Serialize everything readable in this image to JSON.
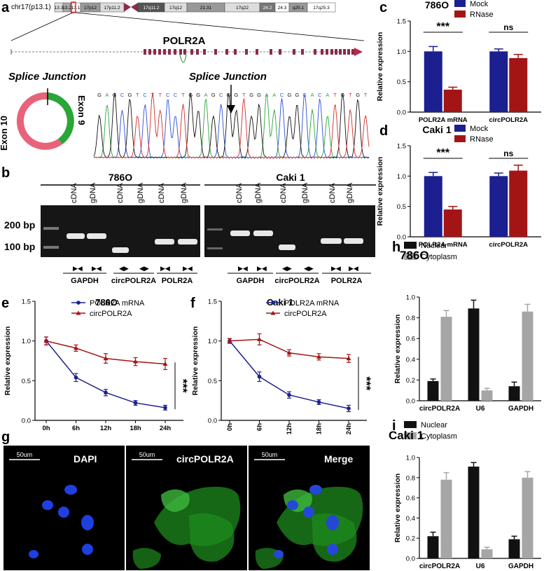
{
  "panel_labels": {
    "a": "a",
    "b": "b",
    "c": "c",
    "d": "d",
    "e": "e",
    "f": "f",
    "g": "g",
    "h": "h",
    "i": "i"
  },
  "panel_a": {
    "chrom_label": "chr17(p13.1)",
    "bands": [
      "13.3",
      "13.2",
      "13.1",
      "17p12",
      "17p11.2",
      "17q11.2",
      "17q12",
      "21.31",
      "17q22",
      "24.2",
      "24.3",
      "q25.1",
      "17q25.3"
    ],
    "gene": "POLR2A",
    "splice_left": "Splice Junction",
    "splice_right": "Splice Junction",
    "exon10": "Exon 10",
    "exon9": "Exon 9",
    "sequence": [
      "G",
      "A",
      "G",
      "C",
      "G",
      "T",
      "C",
      "T",
      "T",
      "C",
      "C",
      "T",
      "G",
      "G",
      "A",
      "G",
      "C",
      "G",
      "G",
      "T",
      "G",
      "G",
      "A",
      "A",
      "C",
      "G",
      "G",
      "C",
      "A",
      "C",
      "A",
      "T",
      "G",
      "T",
      "G",
      "T"
    ],
    "colors": {
      "red_arc": "#e8637a",
      "green_arc": "#2aa637",
      "exon": "#8b2a4a",
      "arrow": "#c0254a"
    }
  },
  "panel_b": {
    "title_left": "786O",
    "title_right": "Caki 1",
    "ladder_200": "200 bp",
    "ladder_100": "100 bp",
    "lanes": [
      "cDNA",
      "gDNA",
      "cDNA",
      "gDNA",
      "cDNA",
      "gDNA"
    ],
    "groups": [
      "GAPDH",
      "circPOLR2A",
      "POLR2A"
    ],
    "primers": [
      "▶◀",
      "▶◀",
      "◀▶",
      "◀▶",
      "▶◀",
      "▶◀"
    ]
  },
  "panel_c": {
    "chart_data": {
      "type": "bar",
      "title": "786O",
      "categories": [
        "POLR2A mRNA",
        "circPOLR2A"
      ],
      "series": [
        {
          "name": "Mock",
          "values": [
            1.0,
            1.0
          ],
          "errors": [
            0.08,
            0.04
          ],
          "color": "#1c1f8f"
        },
        {
          "name": "RNase",
          "values": [
            0.37,
            0.89
          ],
          "errors": [
            0.04,
            0.06
          ],
          "color": "#a31515"
        }
      ],
      "ylabel": "Relative expression",
      "ylim": [
        0,
        1.5
      ],
      "yticks": [
        "0.0",
        "0.5",
        "1.0",
        "1.5"
      ],
      "annotations": [
        "***",
        "ns"
      ]
    }
  },
  "panel_d": {
    "chart_data": {
      "type": "bar",
      "title": "Caki 1",
      "categories": [
        "POLR2A mRNA",
        "circPOLR2A"
      ],
      "series": [
        {
          "name": "Mock",
          "values": [
            1.0,
            1.0
          ],
          "errors": [
            0.06,
            0.05
          ],
          "color": "#1c1f8f"
        },
        {
          "name": "RNase",
          "values": [
            0.45,
            1.09
          ],
          "errors": [
            0.05,
            0.09
          ],
          "color": "#a31515"
        }
      ],
      "ylabel": "Relative expression",
      "ylim": [
        0,
        1.5
      ],
      "yticks": [
        "0.0",
        "0.5",
        "1.0",
        "1.5"
      ],
      "annotations": [
        "***",
        "ns"
      ]
    }
  },
  "panel_e": {
    "chart_data": {
      "type": "line",
      "title": "786O",
      "x": [
        "0h",
        "6h",
        "12h",
        "18h",
        "24h"
      ],
      "series": [
        {
          "name": "POLR2A mRNA",
          "values": [
            1.0,
            0.54,
            0.35,
            0.22,
            0.16
          ],
          "errors": [
            0.05,
            0.05,
            0.04,
            0.03,
            0.03
          ],
          "color": "#1c1f8f"
        },
        {
          "name": "circPOLR2A",
          "values": [
            1.0,
            0.91,
            0.78,
            0.74,
            0.71
          ],
          "errors": [
            0.05,
            0.04,
            0.06,
            0.05,
            0.07
          ],
          "color": "#a31515"
        }
      ],
      "ylabel": "Relative expression",
      "ylim": [
        0,
        1.5
      ],
      "yticks": [
        "0.0",
        "0.5",
        "1.0",
        "1.5"
      ],
      "annotations": [
        "***"
      ]
    }
  },
  "panel_f": {
    "chart_data": {
      "type": "line",
      "title": "Caki 1",
      "x": [
        "0h",
        "6h",
        "12h",
        "18h",
        "24h"
      ],
      "series": [
        {
          "name": "POLR2A mRNA",
          "values": [
            1.0,
            0.55,
            0.32,
            0.23,
            0.15
          ],
          "errors": [
            0.03,
            0.06,
            0.04,
            0.03,
            0.04
          ],
          "color": "#1c1f8f"
        },
        {
          "name": "circPOLR2A",
          "values": [
            1.0,
            1.02,
            0.85,
            0.8,
            0.78
          ],
          "errors": [
            0.03,
            0.07,
            0.04,
            0.04,
            0.05
          ],
          "color": "#a31515"
        }
      ],
      "ylabel": "Relative expression",
      "ylim": [
        0,
        1.5
      ],
      "yticks": [
        "0.0",
        "0.5",
        "1.0",
        "1.5"
      ],
      "annotations": [
        "***"
      ]
    }
  },
  "panel_g": {
    "scale": "50um",
    "titles": [
      "DAPI",
      "circPOLR2A",
      "Merge"
    ]
  },
  "panel_h": {
    "chart_data": {
      "type": "bar",
      "title": "786O",
      "categories": [
        "circPOLR2A",
        "U6",
        "GAPDH"
      ],
      "series": [
        {
          "name": "Nuclear",
          "values": [
            0.19,
            0.89,
            0.14
          ],
          "errors": [
            0.02,
            0.08,
            0.04
          ],
          "color": "#111111"
        },
        {
          "name": "Cytoplasm",
          "values": [
            0.81,
            0.1,
            0.86
          ],
          "errors": [
            0.06,
            0.02,
            0.07
          ],
          "color": "#a6a6a6"
        }
      ],
      "ylabel": "Relative expression",
      "ylim": [
        0,
        1.0
      ],
      "yticks": [
        "0.0",
        "0.2",
        "0.4",
        "0.6",
        "0.8",
        "1.0"
      ]
    }
  },
  "panel_i": {
    "chart_data": {
      "type": "bar",
      "title": "Caki 1",
      "categories": [
        "circPOLR2A",
        "U6",
        "GAPDH"
      ],
      "series": [
        {
          "name": "Nuclear",
          "values": [
            0.22,
            0.91,
            0.19
          ],
          "errors": [
            0.04,
            0.04,
            0.03
          ],
          "color": "#111111"
        },
        {
          "name": "Cytoplasm",
          "values": [
            0.78,
            0.09,
            0.8
          ],
          "errors": [
            0.07,
            0.02,
            0.06
          ],
          "color": "#a6a6a6"
        }
      ],
      "ylabel": "Relative expression",
      "ylim": [
        0,
        1.0
      ],
      "yticks": [
        "0.0",
        "0.2",
        "0.4",
        "0.6",
        "0.8",
        "1.0"
      ]
    }
  }
}
